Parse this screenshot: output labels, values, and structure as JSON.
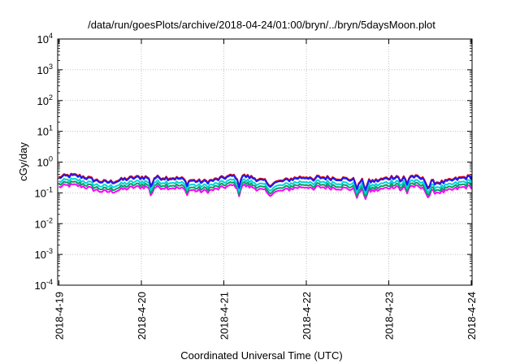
{
  "chart_data": {
    "type": "line",
    "title": "/data/run/goesPlots/archive/2018-04-24/01:00/bryn/../bryn/5daysMoon.plot",
    "xlabel": "Coordinated Universal Time (UTC)",
    "ylabel": "cGy/day",
    "x_range": [
      "2018-04-19",
      "2018-04-24T01:00"
    ],
    "x_ticks": [
      "2018-4-19",
      "2018-4-20",
      "2018-4-21",
      "2018-4-22",
      "2018-4-23",
      "2018-4-24"
    ],
    "yscale": "log",
    "ylim": [
      0.0001,
      10000
    ],
    "y_ticks": [
      {
        "value": 0.0001,
        "base": "10",
        "exp": "-4"
      },
      {
        "value": 0.001,
        "base": "10",
        "exp": "-3"
      },
      {
        "value": 0.01,
        "base": "10",
        "exp": "-2"
      },
      {
        "value": 0.1,
        "base": "10",
        "exp": "-1"
      },
      {
        "value": 1,
        "base": "10",
        "exp": "0"
      },
      {
        "value": 10,
        "base": "10",
        "exp": "1"
      },
      {
        "value": 100,
        "base": "10",
        "exp": "2"
      },
      {
        "value": 1000,
        "base": "10",
        "exp": "3"
      },
      {
        "value": 10000,
        "base": "10",
        "exp": "4"
      }
    ],
    "grid": true,
    "series": [
      {
        "color": "#ff00ff",
        "base": 0.14,
        "dip_scale": 0.45
      },
      {
        "color": "#00a060",
        "base": 0.17,
        "dip_scale": 0.65
      },
      {
        "color": "#00d4d4",
        "base": 0.21,
        "dip_scale": 0.6
      },
      {
        "color": "#e00000",
        "base": 0.3,
        "dip_scale": 0.7
      },
      {
        "color": "#1a1aff",
        "base": 0.28,
        "dip_scale": 0.7
      }
    ],
    "dips": [
      {
        "day": 1.12,
        "factor": 0.55
      },
      {
        "day": 1.55,
        "factor": 0.75
      },
      {
        "day": 2.18,
        "factor": 0.5
      },
      {
        "day": 2.55,
        "factor": 0.7
      },
      {
        "day": 3.08,
        "factor": 0.72
      },
      {
        "day": 3.62,
        "factor": 0.6
      },
      {
        "day": 3.72,
        "factor": 0.62
      },
      {
        "day": 4.15,
        "factor": 0.65
      },
      {
        "day": 4.22,
        "factor": 0.6
      },
      {
        "day": 4.48,
        "factor": 0.6
      }
    ]
  }
}
